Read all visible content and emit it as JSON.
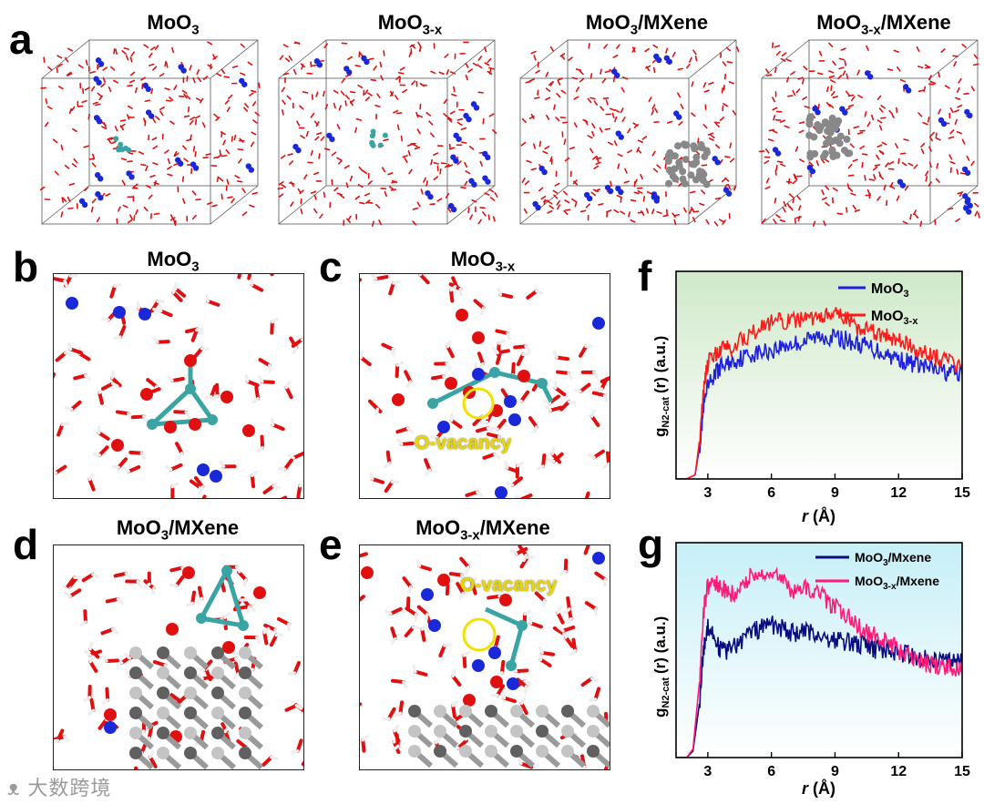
{
  "figure": {
    "panel_labels": {
      "a": "a",
      "b": "b",
      "c": "c",
      "d": "d",
      "e": "e",
      "f": "f",
      "g": "g"
    },
    "row_a": [
      {
        "title_main": "MoO",
        "title_sub": "3",
        "title_tail": ""
      },
      {
        "title_main": "MoO",
        "title_sub": "3-x",
        "title_tail": ""
      },
      {
        "title_main": "MoO",
        "title_sub": "3",
        "title_tail": "/MXene"
      },
      {
        "title_main": "MoO",
        "title_sub": "3-x",
        "title_tail": "/MXene"
      }
    ],
    "zoom_panels": {
      "b": {
        "title_main": "MoO",
        "title_sub": "3",
        "title_tail": ""
      },
      "c": {
        "title_main": "MoO",
        "title_sub": "3-x",
        "title_tail": "",
        "annotation": "O-vacancy"
      },
      "d": {
        "title_main": "MoO",
        "title_sub": "3",
        "title_tail": "/MXene"
      },
      "e": {
        "title_main": "MoO",
        "title_sub": "3-x",
        "title_tail": "/MXene",
        "annotation": "O-vacancy"
      }
    },
    "watermark": "大数跨境"
  },
  "colors": {
    "moo3": "#1f1fe0",
    "moo3x": "#ff1a1a",
    "moo3_mxene": "#0b0b80",
    "moo3x_mxene": "#ff1a7a",
    "f_bg_top": "#cfe9c9",
    "g_bg_top": "#c6eff7",
    "oxygen": "#e01010",
    "nitrogen": "#1a28d8",
    "molybdenum": "#3aa4a4",
    "ti": "#888888"
  },
  "chart_data": [
    {
      "id": "f",
      "type": "line",
      "ylabel": "g",
      "ylabel_sub": "N2-cat",
      "ylabel_tail": "(r)  (a.u.)",
      "xlabel_italic": "r",
      "xlabel_tail": "(Å)",
      "xlim": [
        1.5,
        15
      ],
      "ylim": [
        0,
        1.0
      ],
      "xticks": [
        3,
        6,
        9,
        12,
        15
      ],
      "legend_position": "top-right",
      "series": [
        {
          "name_main": "MoO",
          "name_sub": "3",
          "color": "#1f1fe0",
          "x": [
            1.5,
            2.0,
            2.4,
            2.6,
            2.8,
            3.0,
            3.3,
            3.6,
            4.0,
            4.5,
            5.0,
            5.5,
            6.0,
            6.5,
            7.0,
            7.5,
            8.0,
            8.5,
            9.0,
            9.5,
            10.0,
            10.5,
            11.0,
            11.5,
            12.0,
            12.5,
            13.0,
            13.5,
            14.0,
            14.5,
            15.0
          ],
          "y": [
            0.0,
            0.0,
            0.02,
            0.15,
            0.34,
            0.44,
            0.5,
            0.54,
            0.56,
            0.58,
            0.6,
            0.61,
            0.62,
            0.64,
            0.65,
            0.66,
            0.68,
            0.69,
            0.68,
            0.67,
            0.65,
            0.64,
            0.62,
            0.6,
            0.58,
            0.56,
            0.55,
            0.53,
            0.52,
            0.51,
            0.5
          ]
        },
        {
          "name_main": "MoO",
          "name_sub": "3-x",
          "color": "#ff1a1a",
          "x": [
            1.5,
            2.0,
            2.4,
            2.6,
            2.8,
            3.0,
            3.3,
            3.6,
            4.0,
            4.5,
            5.0,
            5.5,
            6.0,
            6.5,
            7.0,
            7.5,
            8.0,
            8.5,
            9.0,
            9.5,
            10.0,
            10.5,
            11.0,
            11.5,
            12.0,
            12.5,
            13.0,
            13.5,
            14.0,
            14.5,
            15.0
          ],
          "y": [
            0.0,
            0.0,
            0.02,
            0.18,
            0.42,
            0.56,
            0.6,
            0.62,
            0.64,
            0.66,
            0.7,
            0.73,
            0.75,
            0.76,
            0.76,
            0.77,
            0.77,
            0.78,
            0.79,
            0.77,
            0.74,
            0.72,
            0.7,
            0.68,
            0.66,
            0.64,
            0.62,
            0.6,
            0.58,
            0.56,
            0.54
          ]
        }
      ]
    },
    {
      "id": "g",
      "type": "line",
      "ylabel": "g",
      "ylabel_sub": "N2-cat",
      "ylabel_tail": "(r)  (a.u.)",
      "xlabel_italic": "r",
      "xlabel_tail": "(Å)",
      "xlim": [
        1.5,
        15
      ],
      "ylim": [
        0,
        1.0
      ],
      "xticks": [
        3,
        6,
        9,
        12,
        15
      ],
      "legend_position": "top-right",
      "series": [
        {
          "name_main": "MoO",
          "name_sub": "3",
          "name_tail": "/Mxene",
          "color": "#0b0b80",
          "x": [
            1.5,
            2.0,
            2.3,
            2.6,
            2.8,
            3.0,
            3.3,
            3.6,
            4.0,
            4.5,
            5.0,
            5.5,
            6.0,
            6.5,
            7.0,
            7.5,
            8.0,
            8.5,
            9.0,
            9.5,
            10.0,
            10.5,
            11.0,
            11.5,
            12.0,
            12.5,
            13.0,
            13.5,
            14.0,
            14.5,
            15.0
          ],
          "y": [
            0.0,
            0.0,
            0.03,
            0.25,
            0.5,
            0.62,
            0.56,
            0.5,
            0.5,
            0.54,
            0.58,
            0.6,
            0.62,
            0.6,
            0.58,
            0.58,
            0.58,
            0.56,
            0.55,
            0.54,
            0.53,
            0.52,
            0.5,
            0.5,
            0.49,
            0.48,
            0.47,
            0.46,
            0.45,
            0.45,
            0.44
          ]
        },
        {
          "name_main": "MoO",
          "name_sub": "3-x",
          "name_tail": "/Mxene",
          "color": "#ff1a7a",
          "x": [
            1.5,
            2.0,
            2.3,
            2.6,
            2.8,
            3.0,
            3.3,
            3.6,
            4.0,
            4.5,
            5.0,
            5.5,
            6.0,
            6.5,
            7.0,
            7.5,
            8.0,
            8.5,
            9.0,
            9.5,
            10.0,
            10.5,
            11.0,
            11.5,
            12.0,
            12.5,
            13.0,
            13.5,
            14.0,
            14.5,
            15.0
          ],
          "y": [
            0.0,
            0.0,
            0.04,
            0.35,
            0.68,
            0.8,
            0.82,
            0.8,
            0.76,
            0.78,
            0.84,
            0.86,
            0.87,
            0.82,
            0.78,
            0.8,
            0.78,
            0.74,
            0.7,
            0.66,
            0.62,
            0.58,
            0.56,
            0.54,
            0.5,
            0.47,
            0.45,
            0.43,
            0.42,
            0.41,
            0.4
          ]
        }
      ]
    }
  ]
}
